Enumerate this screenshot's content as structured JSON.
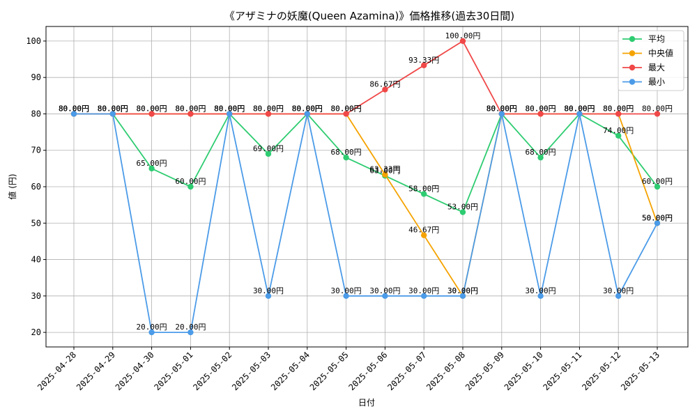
{
  "chart_data": {
    "type": "line",
    "title": "《アザミナの妖魔(Queen Azamina)》価格推移(過去30日間)",
    "xlabel": "日付",
    "ylabel": "値 (円)",
    "ylim": [
      16,
      104
    ],
    "yticks": [
      20,
      30,
      40,
      50,
      60,
      70,
      80,
      90,
      100
    ],
    "grid": true,
    "legend_position": "top-right",
    "value_suffix": "円",
    "categories": [
      "2025-04-28",
      "2025-04-29",
      "2025-04-30",
      "2025-05-01",
      "2025-05-02",
      "2025-05-03",
      "2025-05-04",
      "2025-05-05",
      "2025-05-06",
      "2025-05-07",
      "2025-05-08",
      "2025-05-09",
      "2025-05-10",
      "2025-05-11",
      "2025-05-12",
      "2025-05-13"
    ],
    "series": [
      {
        "name": "平均",
        "color": "#2ecc71",
        "values": [
          80,
          80,
          65,
          60,
          80,
          69,
          80,
          68,
          63,
          58,
          53,
          80,
          68,
          80,
          74,
          60
        ]
      },
      {
        "name": "中央値",
        "color": "#f5a300",
        "values": [
          80,
          80,
          80,
          80,
          80,
          80,
          80,
          80,
          63.33,
          46.67,
          30,
          80,
          80,
          80,
          80,
          50
        ]
      },
      {
        "name": "最大",
        "color": "#f04848",
        "values": [
          80,
          80,
          80,
          80,
          80,
          80,
          80,
          80,
          86.67,
          93.33,
          100,
          80,
          80,
          80,
          80,
          80
        ]
      },
      {
        "name": "最小",
        "color": "#4b9be8",
        "values": [
          80,
          80,
          20,
          20,
          80,
          30,
          80,
          30,
          30,
          30,
          30,
          80,
          30,
          80,
          30,
          50
        ]
      }
    ]
  }
}
